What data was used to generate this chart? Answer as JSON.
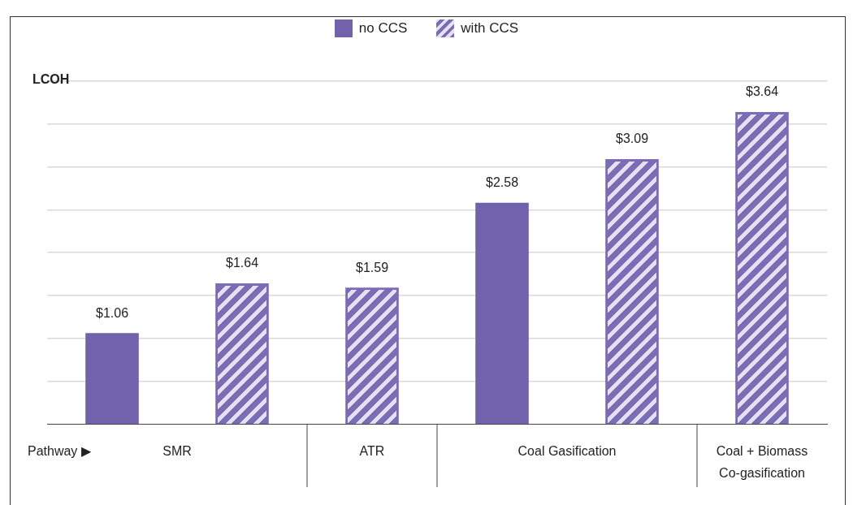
{
  "chart_data": {
    "type": "bar",
    "ylabel": "LCOH",
    "categories": [
      "SMR",
      "ATR",
      "Coal Gasification",
      "Coal + Biomass\nCo-gasification"
    ],
    "series": [
      {
        "name": "no CCS",
        "color": "#7262ac",
        "values": [
          1.06,
          null,
          2.58,
          null
        ],
        "value_labels": [
          "$1.06",
          null,
          "$2.58",
          null
        ]
      },
      {
        "name": "with CCS",
        "color": "#7b6cb6",
        "values": [
          1.64,
          1.59,
          3.09,
          3.64
        ],
        "value_labels": [
          "$1.64",
          "$1.59",
          "$3.09",
          "$3.64"
        ]
      }
    ],
    "ylim": [
      0,
      4
    ],
    "yticks": [
      {
        "value": 0,
        "label": null
      },
      {
        "value": 0.5,
        "label": null
      },
      {
        "value": 1,
        "label": null
      },
      {
        "value": 1.5,
        "label": null
      },
      {
        "value": 2,
        "label": null
      },
      {
        "value": 2.5,
        "label": null
      },
      {
        "value": 3,
        "label": null
      },
      {
        "value": 3.5,
        "label": null
      },
      {
        "value": 4,
        "label": null
      }
    ],
    "tick_labels": "x",
    "grid": "y",
    "legend": "top",
    "annotations": [
      "Pathway ▶"
    ]
  }
}
